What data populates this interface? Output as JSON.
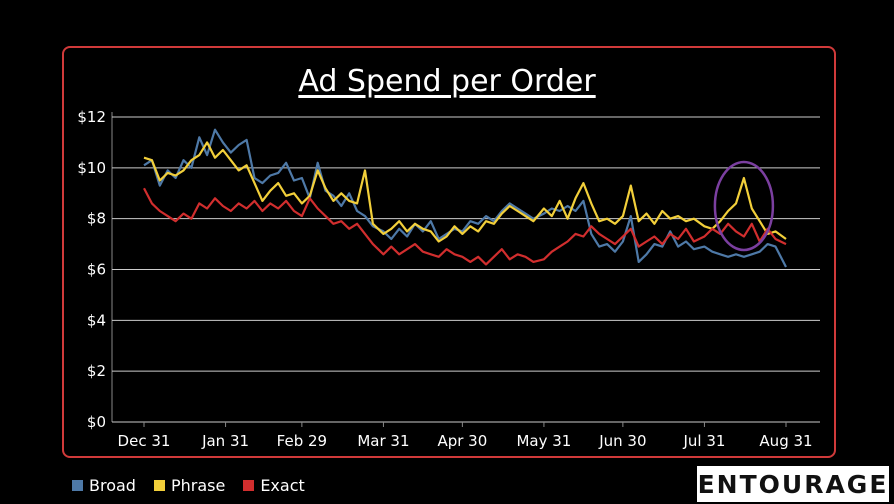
{
  "chart_data": {
    "type": "line",
    "title": "Ad Spend per Order",
    "xlabel": "",
    "ylabel": "",
    "x_ticks": [
      "Dec 31",
      "Jan 31",
      "Feb 29",
      "Mar 31",
      "Apr 30",
      "May 31",
      "Jun 30",
      "Jul 31",
      "Aug 31"
    ],
    "y_ticks": [
      "$0",
      "$2",
      "$4",
      "$6",
      "$8",
      "$10",
      "$12"
    ],
    "ylim": [
      0,
      12
    ],
    "x_range": [
      "2023-12-31",
      "2024-08-31"
    ],
    "grid": "horizontal",
    "legend_position": "bottom-left",
    "annotation": "circle highlighting a Phrase spike in mid-August",
    "series": [
      {
        "name": "Broad",
        "color": "#4e79a7",
        "points": [
          [
            "2023-12-31",
            10.1
          ],
          [
            "2024-01-03",
            10.3
          ],
          [
            "2024-01-06",
            9.3
          ],
          [
            "2024-01-09",
            9.9
          ],
          [
            "2024-01-12",
            9.6
          ],
          [
            "2024-01-15",
            10.3
          ],
          [
            "2024-01-18",
            10.0
          ],
          [
            "2024-01-21",
            11.2
          ],
          [
            "2024-01-24",
            10.5
          ],
          [
            "2024-01-27",
            11.5
          ],
          [
            "2024-01-30",
            11.0
          ],
          [
            "2024-02-02",
            10.6
          ],
          [
            "2024-02-05",
            10.9
          ],
          [
            "2024-02-08",
            11.1
          ],
          [
            "2024-02-11",
            9.6
          ],
          [
            "2024-02-14",
            9.4
          ],
          [
            "2024-02-17",
            9.7
          ],
          [
            "2024-02-20",
            9.8
          ],
          [
            "2024-02-23",
            10.2
          ],
          [
            "2024-02-26",
            9.5
          ],
          [
            "2024-02-29",
            9.6
          ],
          [
            "2024-03-03",
            8.8
          ],
          [
            "2024-03-06",
            10.2
          ],
          [
            "2024-03-09",
            9.1
          ],
          [
            "2024-03-12",
            8.9
          ],
          [
            "2024-03-15",
            8.5
          ],
          [
            "2024-03-18",
            9.0
          ],
          [
            "2024-03-21",
            8.3
          ],
          [
            "2024-03-24",
            8.1
          ],
          [
            "2024-03-27",
            7.7
          ],
          [
            "2024-03-31",
            7.5
          ],
          [
            "2024-04-03",
            7.2
          ],
          [
            "2024-04-06",
            7.6
          ],
          [
            "2024-04-09",
            7.3
          ],
          [
            "2024-04-12",
            7.8
          ],
          [
            "2024-04-15",
            7.5
          ],
          [
            "2024-04-18",
            7.9
          ],
          [
            "2024-04-21",
            7.2
          ],
          [
            "2024-04-24",
            7.4
          ],
          [
            "2024-04-27",
            7.6
          ],
          [
            "2024-04-30",
            7.5
          ],
          [
            "2024-05-03",
            7.9
          ],
          [
            "2024-05-06",
            7.8
          ],
          [
            "2024-05-09",
            8.1
          ],
          [
            "2024-05-12",
            7.9
          ],
          [
            "2024-05-15",
            8.3
          ],
          [
            "2024-05-18",
            8.6
          ],
          [
            "2024-05-21",
            8.4
          ],
          [
            "2024-05-24",
            8.2
          ],
          [
            "2024-05-27",
            8.0
          ],
          [
            "2024-05-31",
            8.2
          ],
          [
            "2024-06-03",
            8.4
          ],
          [
            "2024-06-06",
            8.3
          ],
          [
            "2024-06-09",
            8.5
          ],
          [
            "2024-06-12",
            8.3
          ],
          [
            "2024-06-15",
            8.7
          ],
          [
            "2024-06-18",
            7.4
          ],
          [
            "2024-06-21",
            6.9
          ],
          [
            "2024-06-24",
            7.0
          ],
          [
            "2024-06-27",
            6.7
          ],
          [
            "2024-06-30",
            7.1
          ],
          [
            "2024-07-03",
            8.1
          ],
          [
            "2024-07-06",
            6.3
          ],
          [
            "2024-07-09",
            6.6
          ],
          [
            "2024-07-12",
            7.0
          ],
          [
            "2024-07-15",
            6.9
          ],
          [
            "2024-07-18",
            7.5
          ],
          [
            "2024-07-21",
            6.9
          ],
          [
            "2024-07-24",
            7.1
          ],
          [
            "2024-07-27",
            6.8
          ],
          [
            "2024-07-31",
            6.9
          ],
          [
            "2024-08-03",
            6.7
          ],
          [
            "2024-08-06",
            6.6
          ],
          [
            "2024-08-09",
            6.5
          ],
          [
            "2024-08-12",
            6.6
          ],
          [
            "2024-08-15",
            6.5
          ],
          [
            "2024-08-18",
            6.6
          ],
          [
            "2024-08-21",
            6.7
          ],
          [
            "2024-08-24",
            7.0
          ],
          [
            "2024-08-27",
            6.9
          ],
          [
            "2024-08-31",
            6.1
          ]
        ]
      },
      {
        "name": "Phrase",
        "color": "#f2cf3a",
        "points": [
          [
            "2023-12-31",
            10.4
          ],
          [
            "2024-01-03",
            10.3
          ],
          [
            "2024-01-06",
            9.5
          ],
          [
            "2024-01-09",
            9.8
          ],
          [
            "2024-01-12",
            9.7
          ],
          [
            "2024-01-15",
            9.9
          ],
          [
            "2024-01-18",
            10.3
          ],
          [
            "2024-01-21",
            10.5
          ],
          [
            "2024-01-24",
            11.0
          ],
          [
            "2024-01-27",
            10.4
          ],
          [
            "2024-01-30",
            10.7
          ],
          [
            "2024-02-02",
            10.3
          ],
          [
            "2024-02-05",
            9.9
          ],
          [
            "2024-02-08",
            10.1
          ],
          [
            "2024-02-11",
            9.4
          ],
          [
            "2024-02-14",
            8.7
          ],
          [
            "2024-02-17",
            9.1
          ],
          [
            "2024-02-20",
            9.4
          ],
          [
            "2024-02-23",
            8.9
          ],
          [
            "2024-02-26",
            9.0
          ],
          [
            "2024-02-29",
            8.6
          ],
          [
            "2024-03-03",
            8.9
          ],
          [
            "2024-03-06",
            9.9
          ],
          [
            "2024-03-09",
            9.2
          ],
          [
            "2024-03-12",
            8.7
          ],
          [
            "2024-03-15",
            9.0
          ],
          [
            "2024-03-18",
            8.7
          ],
          [
            "2024-03-21",
            8.6
          ],
          [
            "2024-03-24",
            9.9
          ],
          [
            "2024-03-27",
            7.8
          ],
          [
            "2024-03-31",
            7.4
          ],
          [
            "2024-04-03",
            7.6
          ],
          [
            "2024-04-06",
            7.9
          ],
          [
            "2024-04-09",
            7.5
          ],
          [
            "2024-04-12",
            7.8
          ],
          [
            "2024-04-15",
            7.6
          ],
          [
            "2024-04-18",
            7.5
          ],
          [
            "2024-04-21",
            7.1
          ],
          [
            "2024-04-24",
            7.3
          ],
          [
            "2024-04-27",
            7.7
          ],
          [
            "2024-04-30",
            7.4
          ],
          [
            "2024-05-03",
            7.7
          ],
          [
            "2024-05-06",
            7.5
          ],
          [
            "2024-05-09",
            7.9
          ],
          [
            "2024-05-12",
            7.8
          ],
          [
            "2024-05-15",
            8.2
          ],
          [
            "2024-05-18",
            8.5
          ],
          [
            "2024-05-21",
            8.3
          ],
          [
            "2024-05-24",
            8.1
          ],
          [
            "2024-05-27",
            7.9
          ],
          [
            "2024-05-31",
            8.4
          ],
          [
            "2024-06-03",
            8.1
          ],
          [
            "2024-06-06",
            8.7
          ],
          [
            "2024-06-09",
            8.0
          ],
          [
            "2024-06-12",
            8.8
          ],
          [
            "2024-06-15",
            9.4
          ],
          [
            "2024-06-18",
            8.6
          ],
          [
            "2024-06-21",
            7.9
          ],
          [
            "2024-06-24",
            8.0
          ],
          [
            "2024-06-27",
            7.8
          ],
          [
            "2024-06-30",
            8.1
          ],
          [
            "2024-07-03",
            9.3
          ],
          [
            "2024-07-06",
            7.9
          ],
          [
            "2024-07-09",
            8.2
          ],
          [
            "2024-07-12",
            7.8
          ],
          [
            "2024-07-15",
            8.3
          ],
          [
            "2024-07-18",
            8.0
          ],
          [
            "2024-07-21",
            8.1
          ],
          [
            "2024-07-24",
            7.9
          ],
          [
            "2024-07-27",
            8.0
          ],
          [
            "2024-07-31",
            7.7
          ],
          [
            "2024-08-03",
            7.6
          ],
          [
            "2024-08-06",
            7.9
          ],
          [
            "2024-08-09",
            8.3
          ],
          [
            "2024-08-12",
            8.6
          ],
          [
            "2024-08-15",
            9.6
          ],
          [
            "2024-08-18",
            8.4
          ],
          [
            "2024-08-21",
            7.9
          ],
          [
            "2024-08-24",
            7.4
          ],
          [
            "2024-08-27",
            7.5
          ],
          [
            "2024-08-31",
            7.2
          ]
        ]
      },
      {
        "name": "Exact",
        "color": "#d12e2e",
        "points": [
          [
            "2023-12-31",
            9.2
          ],
          [
            "2024-01-03",
            8.6
          ],
          [
            "2024-01-06",
            8.3
          ],
          [
            "2024-01-09",
            8.1
          ],
          [
            "2024-01-12",
            7.9
          ],
          [
            "2024-01-15",
            8.2
          ],
          [
            "2024-01-18",
            8.0
          ],
          [
            "2024-01-21",
            8.6
          ],
          [
            "2024-01-24",
            8.4
          ],
          [
            "2024-01-27",
            8.8
          ],
          [
            "2024-01-30",
            8.5
          ],
          [
            "2024-02-02",
            8.3
          ],
          [
            "2024-02-05",
            8.6
          ],
          [
            "2024-02-08",
            8.4
          ],
          [
            "2024-02-11",
            8.7
          ],
          [
            "2024-02-14",
            8.3
          ],
          [
            "2024-02-17",
            8.6
          ],
          [
            "2024-02-20",
            8.4
          ],
          [
            "2024-02-23",
            8.7
          ],
          [
            "2024-02-26",
            8.3
          ],
          [
            "2024-02-29",
            8.1
          ],
          [
            "2024-03-03",
            8.8
          ],
          [
            "2024-03-06",
            8.4
          ],
          [
            "2024-03-09",
            8.1
          ],
          [
            "2024-03-12",
            7.8
          ],
          [
            "2024-03-15",
            7.9
          ],
          [
            "2024-03-18",
            7.6
          ],
          [
            "2024-03-21",
            7.8
          ],
          [
            "2024-03-24",
            7.4
          ],
          [
            "2024-03-27",
            7.0
          ],
          [
            "2024-03-31",
            6.6
          ],
          [
            "2024-04-03",
            6.9
          ],
          [
            "2024-04-06",
            6.6
          ],
          [
            "2024-04-09",
            6.8
          ],
          [
            "2024-04-12",
            7.0
          ],
          [
            "2024-04-15",
            6.7
          ],
          [
            "2024-04-18",
            6.6
          ],
          [
            "2024-04-21",
            6.5
          ],
          [
            "2024-04-24",
            6.8
          ],
          [
            "2024-04-27",
            6.6
          ],
          [
            "2024-04-30",
            6.5
          ],
          [
            "2024-05-03",
            6.3
          ],
          [
            "2024-05-06",
            6.5
          ],
          [
            "2024-05-09",
            6.2
          ],
          [
            "2024-05-12",
            6.5
          ],
          [
            "2024-05-15",
            6.8
          ],
          [
            "2024-05-18",
            6.4
          ],
          [
            "2024-05-21",
            6.6
          ],
          [
            "2024-05-24",
            6.5
          ],
          [
            "2024-05-27",
            6.3
          ],
          [
            "2024-05-31",
            6.4
          ],
          [
            "2024-06-03",
            6.7
          ],
          [
            "2024-06-06",
            6.9
          ],
          [
            "2024-06-09",
            7.1
          ],
          [
            "2024-06-12",
            7.4
          ],
          [
            "2024-06-15",
            7.3
          ],
          [
            "2024-06-18",
            7.7
          ],
          [
            "2024-06-21",
            7.4
          ],
          [
            "2024-06-24",
            7.2
          ],
          [
            "2024-06-27",
            7.0
          ],
          [
            "2024-06-30",
            7.3
          ],
          [
            "2024-07-03",
            7.6
          ],
          [
            "2024-07-06",
            6.9
          ],
          [
            "2024-07-09",
            7.1
          ],
          [
            "2024-07-12",
            7.3
          ],
          [
            "2024-07-15",
            7.0
          ],
          [
            "2024-07-18",
            7.4
          ],
          [
            "2024-07-21",
            7.2
          ],
          [
            "2024-07-24",
            7.6
          ],
          [
            "2024-07-27",
            7.1
          ],
          [
            "2024-07-31",
            7.3
          ],
          [
            "2024-08-03",
            7.6
          ],
          [
            "2024-08-06",
            7.4
          ],
          [
            "2024-08-09",
            7.8
          ],
          [
            "2024-08-12",
            7.5
          ],
          [
            "2024-08-15",
            7.3
          ],
          [
            "2024-08-18",
            7.8
          ],
          [
            "2024-08-21",
            7.1
          ],
          [
            "2024-08-24",
            7.6
          ],
          [
            "2024-08-27",
            7.2
          ],
          [
            "2024-08-31",
            7.0
          ]
        ]
      }
    ],
    "legend": [
      "Broad",
      "Phrase",
      "Exact"
    ],
    "annotation_color": "#7b3fa0"
  },
  "brand": {
    "logo_text": "ENTOURAGE"
  },
  "colors": {
    "frame": "#d03a3a",
    "grid": "#cccccc"
  }
}
